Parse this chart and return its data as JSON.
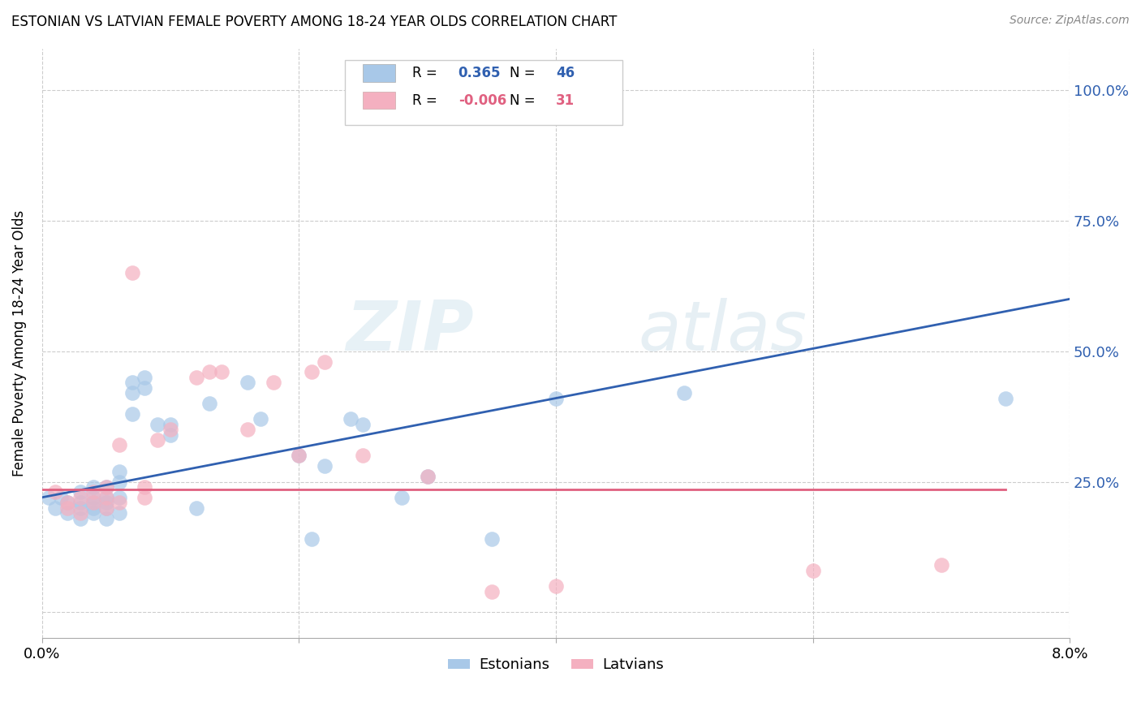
{
  "title": "ESTONIAN VS LATVIAN FEMALE POVERTY AMONG 18-24 YEAR OLDS CORRELATION CHART",
  "source": "Source: ZipAtlas.com",
  "ylabel": "Female Poverty Among 18-24 Year Olds",
  "yticks": [
    0.0,
    0.25,
    0.5,
    0.75,
    1.0
  ],
  "ytick_labels_right": [
    "",
    "25.0%",
    "50.0%",
    "75.0%",
    "100.0%"
  ],
  "xlim": [
    0.0,
    0.08
  ],
  "ylim": [
    -0.05,
    1.08
  ],
  "legend_label1": "Estonians",
  "legend_label2": "Latvians",
  "R_estonian": "0.365",
  "N_estonian": "46",
  "R_latvian": "-0.006",
  "N_latvian": "31",
  "estonian_color": "#a8c8e8",
  "latvian_color": "#f4b0c0",
  "estonian_line_color": "#3060b0",
  "latvian_line_color": "#e06080",
  "watermark_zip": "ZIP",
  "watermark_atlas": "atlas",
  "estonian_x": [
    0.0005,
    0.001,
    0.0015,
    0.002,
    0.002,
    0.003,
    0.003,
    0.003,
    0.003,
    0.004,
    0.004,
    0.004,
    0.004,
    0.004,
    0.005,
    0.005,
    0.005,
    0.005,
    0.005,
    0.006,
    0.006,
    0.006,
    0.006,
    0.007,
    0.007,
    0.007,
    0.008,
    0.008,
    0.009,
    0.01,
    0.01,
    0.012,
    0.013,
    0.016,
    0.017,
    0.02,
    0.021,
    0.022,
    0.024,
    0.025,
    0.028,
    0.03,
    0.035,
    0.04,
    0.05,
    0.075
  ],
  "estonian_y": [
    0.22,
    0.2,
    0.22,
    0.21,
    0.19,
    0.21,
    0.23,
    0.2,
    0.18,
    0.22,
    0.24,
    0.21,
    0.2,
    0.19,
    0.24,
    0.22,
    0.21,
    0.2,
    0.18,
    0.27,
    0.25,
    0.22,
    0.19,
    0.44,
    0.42,
    0.38,
    0.45,
    0.43,
    0.36,
    0.36,
    0.34,
    0.2,
    0.4,
    0.44,
    0.37,
    0.3,
    0.14,
    0.28,
    0.37,
    0.36,
    0.22,
    0.26,
    0.14,
    0.41,
    0.42,
    0.41
  ],
  "latvian_x": [
    0.001,
    0.002,
    0.002,
    0.003,
    0.003,
    0.004,
    0.004,
    0.005,
    0.005,
    0.005,
    0.006,
    0.006,
    0.007,
    0.008,
    0.008,
    0.009,
    0.01,
    0.012,
    0.013,
    0.014,
    0.016,
    0.018,
    0.02,
    0.021,
    0.022,
    0.025,
    0.03,
    0.035,
    0.04,
    0.06,
    0.07
  ],
  "latvian_y": [
    0.23,
    0.21,
    0.2,
    0.22,
    0.19,
    0.23,
    0.21,
    0.24,
    0.22,
    0.2,
    0.32,
    0.21,
    0.65,
    0.24,
    0.22,
    0.33,
    0.35,
    0.45,
    0.46,
    0.46,
    0.35,
    0.44,
    0.3,
    0.46,
    0.48,
    0.3,
    0.26,
    0.04,
    0.05,
    0.08,
    0.09
  ],
  "estonian_line_x": [
    0.0,
    0.08
  ],
  "estonian_line_y": [
    0.22,
    0.6
  ],
  "latvian_line_x": [
    0.0,
    0.075
  ],
  "latvian_line_y": [
    0.235,
    0.235
  ]
}
